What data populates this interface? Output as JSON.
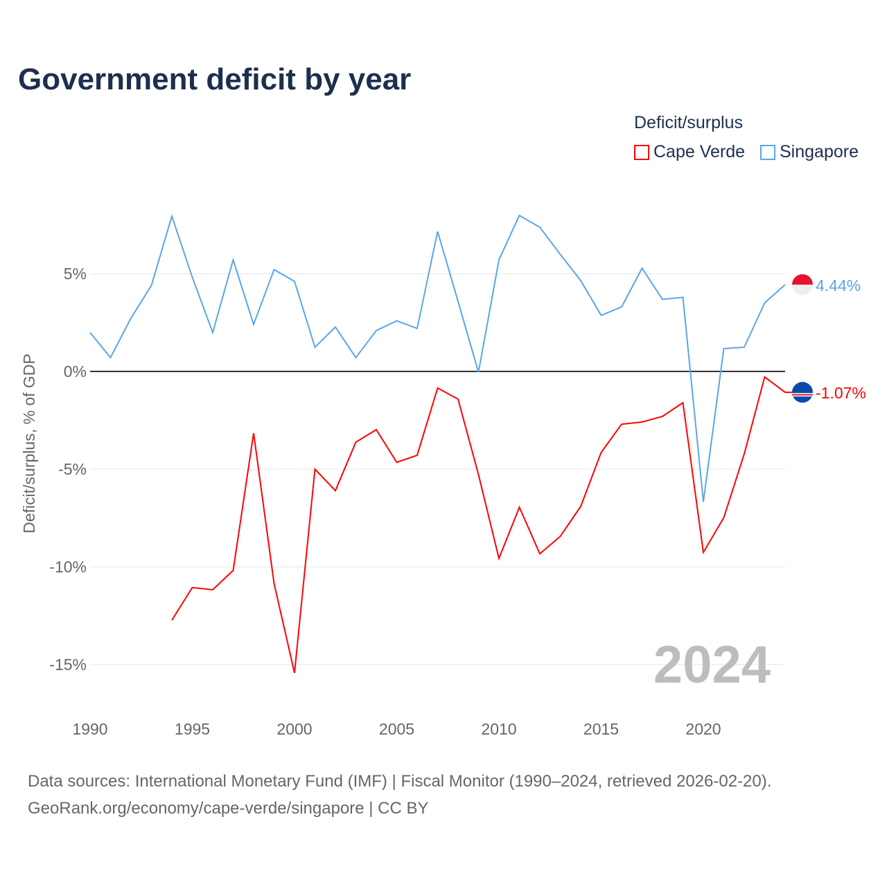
{
  "title": "Government deficit by year",
  "legend": {
    "title": "Deficit/surplus",
    "items": [
      {
        "label": "Cape Verde",
        "color": "#ff0000"
      },
      {
        "label": "Singapore",
        "color": "#5aa5ea"
      }
    ]
  },
  "source": {
    "line1": "Data sources: International Monetary Fund (IMF) | Fiscal Monitor (1990–2024, retrieved 2026-02-20).",
    "line2": "GeoRank.org/economy/cape-verde/singapore | CC BY"
  },
  "chart_data": {
    "type": "line",
    "ylabel": "Deficit/surplus, % of GDP",
    "xlim": [
      1990,
      2024
    ],
    "ylim": [
      -17,
      9.5
    ],
    "x_ticks": [
      1990,
      1995,
      2000,
      2005,
      2010,
      2015,
      2020
    ],
    "x_tick_labels": [
      "1990",
      "1995",
      "2000",
      "2005",
      "2010",
      "2015",
      "2020"
    ],
    "y_ticks": [
      5,
      0,
      -5,
      -10,
      -15
    ],
    "y_tick_labels": [
      "5%",
      "0%",
      "-5%",
      "-10%",
      "-15%"
    ],
    "year_watermark": "2024",
    "series": [
      {
        "name": "Singapore",
        "color": "#5aa5ea",
        "end_label": "4.44%",
        "start": 1990,
        "values": [
          1.99,
          0.71,
          2.73,
          4.4,
          7.94,
          4.82,
          1.99,
          5.71,
          2.41,
          5.21,
          4.61,
          1.24,
          2.27,
          0.71,
          2.09,
          2.59,
          2.2,
          7.16,
          3.58,
          -0.04,
          5.71,
          7.98,
          7.38,
          5.99,
          4.65,
          2.87,
          3.3,
          5.28,
          3.69,
          3.79,
          -6.67,
          1.17,
          1.24,
          3.51,
          4.44
        ]
      },
      {
        "name": "Cape Verde",
        "color": "#ff0000",
        "end_label": "-1.07%",
        "start": 1994,
        "values": [
          -12.73,
          -11.06,
          -11.17,
          -10.18,
          -3.16,
          -10.85,
          -15.43,
          -5.0,
          -6.1,
          -3.62,
          -2.98,
          -4.65,
          -4.29,
          -0.85,
          -1.42,
          -5.28,
          -9.57,
          -6.95,
          -9.33,
          -8.44,
          -6.91,
          -4.15,
          -2.7,
          -2.59,
          -2.3,
          -1.6,
          -9.26,
          -7.48,
          -4.22,
          -0.28,
          -1.07
        ]
      }
    ]
  }
}
